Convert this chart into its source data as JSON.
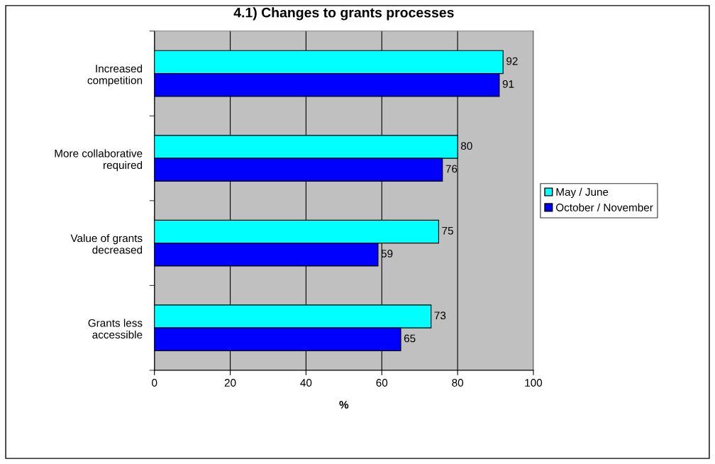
{
  "chart_data": {
    "type": "bar",
    "orientation": "horizontal",
    "title": "4.1) Changes to grants processes",
    "xlabel": "%",
    "categories": [
      "Increased\ncompetition",
      "More collaborative\nrequired",
      "Value of grants\ndecreased",
      "Grants less\naccessible"
    ],
    "series": [
      {
        "name": "May / June",
        "color": "#00ffff",
        "values": [
          92,
          80,
          75,
          73
        ]
      },
      {
        "name": "October / November",
        "color": "#0000ff",
        "values": [
          91,
          76,
          59,
          65
        ]
      }
    ],
    "xlim": [
      0,
      100
    ],
    "xticks": [
      0,
      20,
      40,
      60,
      80,
      100
    ],
    "grid": "x",
    "legend": "right",
    "data_labels": true
  }
}
